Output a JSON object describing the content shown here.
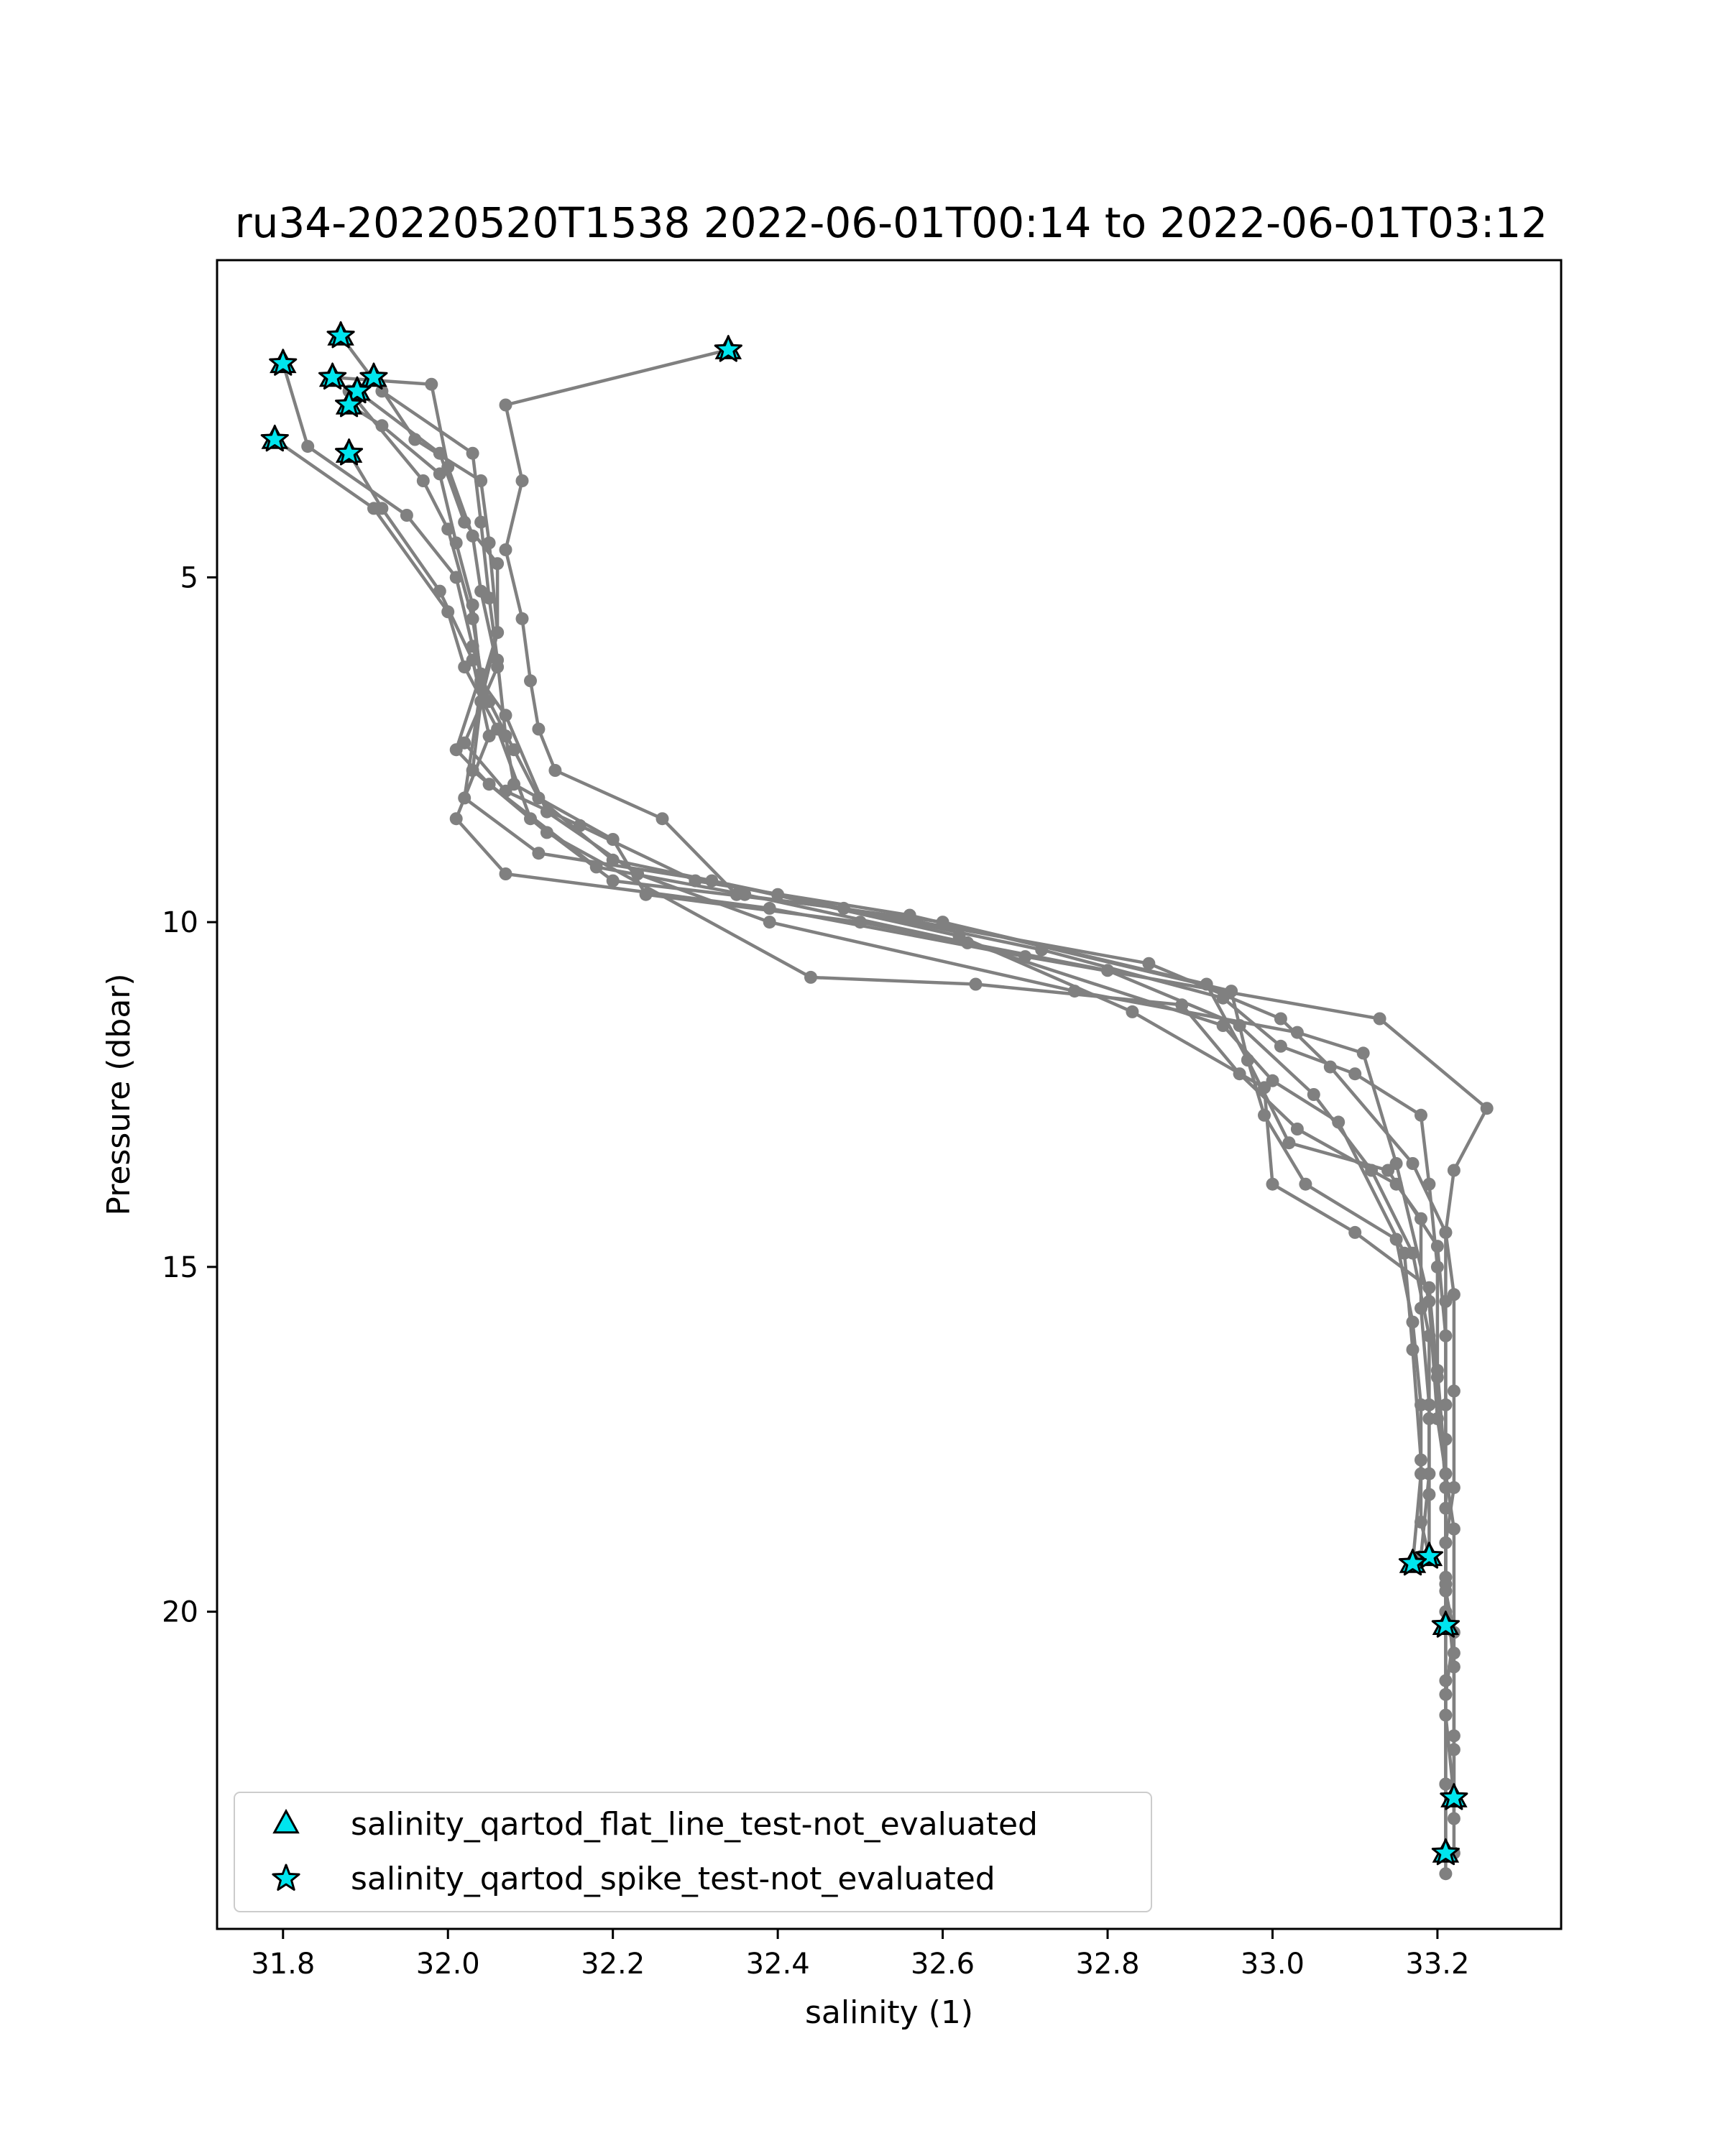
{
  "chart_data": {
    "type": "scatter",
    "title": "ru34-20220520T1538 2022-06-01T00:14 to 2022-06-01T03:12",
    "xlabel": "salinity (1)",
    "ylabel": "Pressure (dbar)",
    "xlim": [
      31.72,
      33.35
    ],
    "ylim": [
      24.6,
      0.4
    ],
    "y_inverted": true,
    "x_ticks": [
      31.8,
      32.0,
      32.2,
      32.4,
      32.6,
      32.8,
      33.0,
      33.2
    ],
    "x_tick_labels": [
      "31.8",
      "32.0",
      "32.2",
      "32.4",
      "32.6",
      "32.8",
      "33.0",
      "33.2"
    ],
    "y_ticks": [
      5,
      10,
      15,
      20
    ],
    "y_tick_labels": [
      "5",
      "10",
      "15",
      "20"
    ],
    "grid": false,
    "line_color": "#808080",
    "marker_color": "#00e5ee",
    "marker_edge_color": "#000000",
    "legend_position": "lower-left",
    "legend": [
      {
        "label": "salinity_qartod_flat_line_test-not_evaluated",
        "marker": "triangle"
      },
      {
        "label": "salinity_qartod_spike_test-not_evaluated",
        "marker": "star"
      }
    ],
    "profiles": [
      {
        "points": [
          [
            32.34,
            1.7
          ],
          [
            32.07,
            2.5
          ],
          [
            32.09,
            3.6
          ],
          [
            32.07,
            4.6
          ],
          [
            32.09,
            5.6
          ],
          [
            32.1,
            6.5
          ],
          [
            32.11,
            7.2
          ],
          [
            32.13,
            7.8
          ],
          [
            32.26,
            8.5
          ],
          [
            32.35,
            9.6
          ],
          [
            32.6,
            10.0
          ],
          [
            32.92,
            10.9
          ],
          [
            32.97,
            12.0
          ],
          [
            32.99,
            12.8
          ],
          [
            33.04,
            13.8
          ],
          [
            33.15,
            14.6
          ],
          [
            33.17,
            15.8
          ],
          [
            33.18,
            17.0
          ],
          [
            33.18,
            18.0
          ],
          [
            33.17,
            19.3
          ]
        ]
      },
      {
        "points": [
          [
            31.87,
            1.5
          ],
          [
            31.92,
            2.3
          ],
          [
            32.03,
            3.2
          ],
          [
            32.04,
            4.2
          ],
          [
            32.05,
            5.3
          ],
          [
            32.06,
            6.2
          ],
          [
            32.07,
            7.3
          ],
          [
            32.08,
            8.0
          ],
          [
            32.2,
            8.8
          ],
          [
            32.24,
            9.6
          ],
          [
            32.5,
            10.0
          ],
          [
            32.8,
            10.7
          ],
          [
            32.96,
            11.5
          ],
          [
            33.05,
            12.5
          ],
          [
            33.12,
            13.6
          ],
          [
            33.17,
            14.8
          ],
          [
            33.19,
            16.0
          ],
          [
            33.19,
            17.2
          ],
          [
            33.19,
            18.3
          ],
          [
            33.19,
            19.2
          ]
        ]
      },
      {
        "points": [
          [
            31.8,
            1.9
          ],
          [
            31.83,
            3.1
          ],
          [
            31.95,
            4.1
          ],
          [
            32.01,
            5.0
          ],
          [
            32.03,
            6.0
          ],
          [
            32.05,
            6.8
          ],
          [
            32.08,
            7.5
          ],
          [
            32.11,
            8.2
          ],
          [
            32.2,
            9.1
          ],
          [
            32.4,
            9.6
          ],
          [
            32.72,
            10.4
          ],
          [
            32.94,
            11.1
          ],
          [
            33.01,
            11.8
          ],
          [
            33.1,
            12.2
          ],
          [
            33.18,
            12.8
          ],
          [
            33.19,
            13.8
          ],
          [
            33.2,
            15.0
          ],
          [
            33.2,
            16.5
          ],
          [
            33.21,
            18.0
          ],
          [
            33.21,
            20.2
          ]
        ]
      },
      {
        "points": [
          [
            31.79,
            3.0
          ],
          [
            31.91,
            4.0
          ],
          [
            32.0,
            5.5
          ],
          [
            32.02,
            6.3
          ],
          [
            32.06,
            7.2
          ],
          [
            32.1,
            8.5
          ],
          [
            32.2,
            9.4
          ],
          [
            32.48,
            9.8
          ],
          [
            32.85,
            10.6
          ],
          [
            33.01,
            11.4
          ],
          [
            33.07,
            12.1
          ],
          [
            33.17,
            13.5
          ],
          [
            33.21,
            14.5
          ],
          [
            33.21,
            15.5
          ],
          [
            33.21,
            17.0
          ],
          [
            33.21,
            18.5
          ],
          [
            33.21,
            20.0
          ],
          [
            33.21,
            21.5
          ],
          [
            33.22,
            22.7
          ]
        ]
      },
      {
        "points": [
          [
            31.86,
            2.1
          ],
          [
            31.98,
            2.2
          ],
          [
            32.0,
            3.4
          ],
          [
            32.03,
            4.4
          ],
          [
            32.04,
            5.2
          ],
          [
            32.06,
            6.3
          ],
          [
            32.02,
            7.4
          ],
          [
            32.07,
            8.1
          ],
          [
            32.16,
            8.6
          ],
          [
            32.3,
            9.4
          ],
          [
            32.56,
            9.9
          ],
          [
            32.95,
            11.0
          ],
          [
            32.97,
            12.0
          ],
          [
            33.02,
            13.2
          ],
          [
            33.14,
            13.6
          ],
          [
            33.2,
            14.7
          ],
          [
            33.21,
            16.0
          ],
          [
            33.21,
            17.5
          ],
          [
            33.21,
            19.5
          ],
          [
            33.21,
            21.0
          ],
          [
            33.21,
            22.5
          ],
          [
            33.21,
            23.5
          ]
        ]
      },
      {
        "points": [
          [
            31.91,
            2.1
          ],
          [
            31.96,
            3.0
          ],
          [
            32.04,
            3.6
          ],
          [
            32.05,
            4.5
          ],
          [
            32.06,
            5.8
          ],
          [
            32.04,
            6.6
          ],
          [
            32.02,
            8.2
          ],
          [
            32.11,
            9.0
          ],
          [
            32.32,
            9.4
          ],
          [
            32.62,
            10.2
          ],
          [
            32.83,
            11.3
          ],
          [
            32.99,
            12.4
          ],
          [
            33.0,
            13.8
          ],
          [
            33.1,
            14.5
          ],
          [
            33.19,
            15.3
          ],
          [
            33.2,
            16.6
          ],
          [
            33.21,
            18.2
          ],
          [
            33.21,
            19.6
          ],
          [
            33.22,
            20.8
          ],
          [
            33.22,
            22.0
          ],
          [
            33.22,
            23.5
          ]
        ]
      },
      {
        "points": [
          [
            31.88,
            2.5
          ],
          [
            31.92,
            2.8
          ],
          [
            31.99,
            3.5
          ],
          [
            32.01,
            4.5
          ],
          [
            32.03,
            5.4
          ],
          [
            32.04,
            6.5
          ],
          [
            32.07,
            7.0
          ],
          [
            32.12,
            8.4
          ],
          [
            32.23,
            9.3
          ],
          [
            32.39,
            10.0
          ],
          [
            32.76,
            11.0
          ],
          [
            33.03,
            11.6
          ],
          [
            33.11,
            11.9
          ],
          [
            33.15,
            13.5
          ],
          [
            33.19,
            15.5
          ],
          [
            33.2,
            17.2
          ],
          [
            33.22,
            18.8
          ],
          [
            33.22,
            20.6
          ],
          [
            33.22,
            21.8
          ],
          [
            33.22,
            23.0
          ]
        ]
      },
      {
        "points": [
          [
            31.89,
            2.3
          ],
          [
            31.99,
            3.2
          ],
          [
            32.02,
            4.2
          ],
          [
            32.06,
            4.8
          ],
          [
            32.06,
            5.8
          ],
          [
            32.04,
            6.8
          ],
          [
            32.03,
            7.8
          ],
          [
            32.12,
            8.7
          ],
          [
            32.44,
            10.8
          ],
          [
            32.64,
            10.9
          ],
          [
            32.89,
            11.2
          ],
          [
            32.96,
            12.2
          ],
          [
            33.03,
            13.0
          ],
          [
            33.15,
            13.8
          ],
          [
            33.18,
            14.3
          ],
          [
            33.18,
            15.6
          ],
          [
            33.19,
            17.0
          ],
          [
            33.19,
            18.0
          ],
          [
            33.18,
            19.2
          ]
        ]
      },
      {
        "points": [
          [
            31.88,
            3.2
          ],
          [
            31.92,
            4.0
          ],
          [
            31.99,
            5.2
          ],
          [
            32.03,
            6.2
          ],
          [
            32.05,
            7.3
          ],
          [
            32.01,
            8.5
          ],
          [
            32.07,
            9.3
          ],
          [
            32.39,
            9.8
          ],
          [
            32.7,
            10.5
          ],
          [
            33.13,
            11.4
          ],
          [
            33.26,
            12.7
          ],
          [
            33.22,
            13.6
          ],
          [
            33.21,
            14.5
          ],
          [
            33.22,
            15.4
          ],
          [
            33.22,
            16.8
          ],
          [
            33.22,
            18.2
          ],
          [
            33.21,
            19.0
          ],
          [
            33.21,
            19.7
          ],
          [
            33.22,
            20.3
          ],
          [
            33.21,
            21.2
          ],
          [
            33.21,
            22.5
          ],
          [
            33.21,
            23.8
          ]
        ]
      },
      {
        "points": [
          [
            31.88,
            2.3
          ],
          [
            31.97,
            3.6
          ],
          [
            32.0,
            4.3
          ],
          [
            32.03,
            5.6
          ],
          [
            32.04,
            6.4
          ],
          [
            32.01,
            7.5
          ],
          [
            32.05,
            8.0
          ],
          [
            32.18,
            9.2
          ],
          [
            32.36,
            9.6
          ],
          [
            32.63,
            10.3
          ],
          [
            32.94,
            11.5
          ],
          [
            33.0,
            12.3
          ],
          [
            33.08,
            12.9
          ],
          [
            33.16,
            14.8
          ],
          [
            33.17,
            16.2
          ],
          [
            33.18,
            17.8
          ],
          [
            33.18,
            18.7
          ],
          [
            33.19,
            19.2
          ]
        ]
      }
    ],
    "spike_test_points": [
      [
        31.87,
        1.5
      ],
      [
        32.34,
        1.7
      ],
      [
        31.8,
        1.9
      ],
      [
        31.86,
        2.1
      ],
      [
        31.91,
        2.1
      ],
      [
        31.89,
        2.3
      ],
      [
        31.88,
        2.5
      ],
      [
        31.79,
        3.0
      ],
      [
        31.88,
        3.2
      ],
      [
        33.19,
        19.2
      ],
      [
        33.17,
        19.3
      ],
      [
        33.21,
        20.2
      ],
      [
        33.22,
        22.7
      ],
      [
        33.21,
        23.5
      ]
    ],
    "flat_line_test_points": [
      [
        31.87,
        1.5
      ],
      [
        32.34,
        1.7
      ],
      [
        31.8,
        1.9
      ],
      [
        31.86,
        2.1
      ],
      [
        31.91,
        2.1
      ],
      [
        31.89,
        2.3
      ],
      [
        31.88,
        2.5
      ],
      [
        31.79,
        3.0
      ],
      [
        31.88,
        3.2
      ],
      [
        33.19,
        19.2
      ],
      [
        33.17,
        19.3
      ],
      [
        33.21,
        20.2
      ],
      [
        33.22,
        22.7
      ],
      [
        33.21,
        23.5
      ]
    ]
  }
}
